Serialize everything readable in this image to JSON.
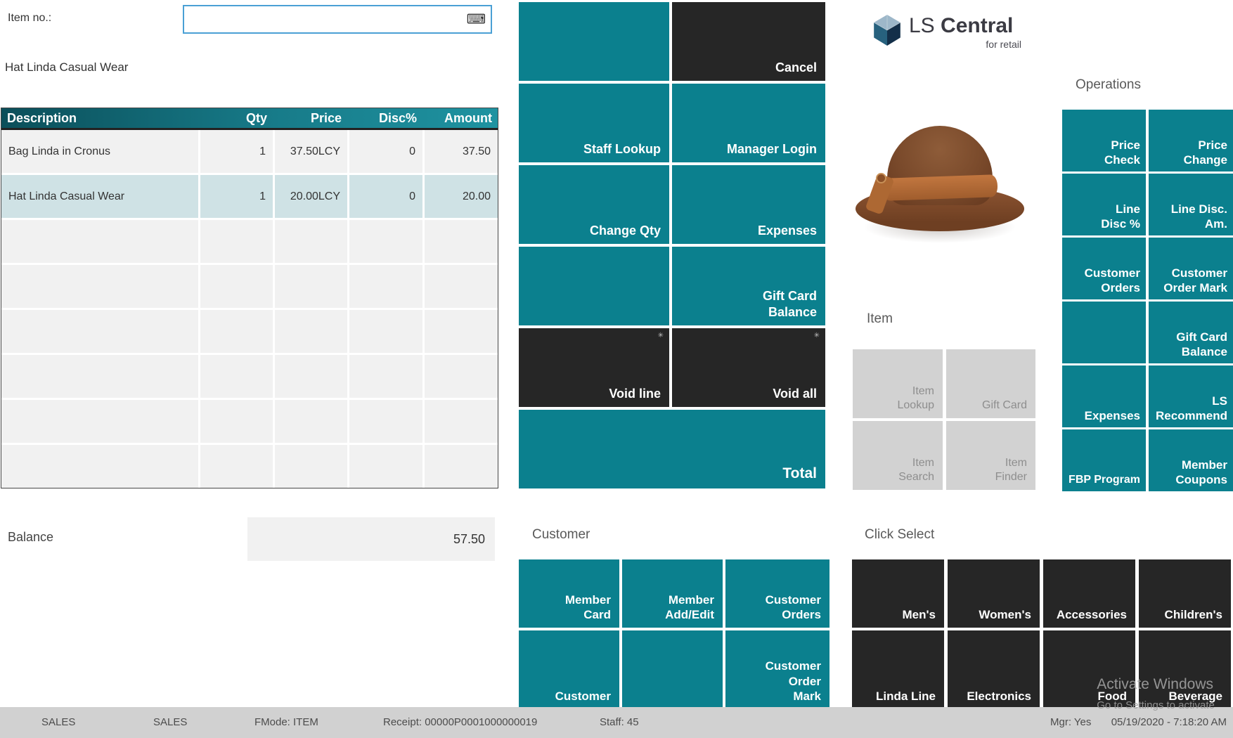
{
  "item_entry": {
    "label": "Item no.:",
    "value": "",
    "placeholder": "",
    "keyboard_icon": "⌨",
    "selected_item_name": "Hat Linda Casual Wear"
  },
  "receipt_table": {
    "columns": [
      "Description",
      "Qty",
      "Price",
      "Disc%",
      "Amount"
    ],
    "rows": [
      {
        "description": "Bag Linda in Cronus",
        "qty": "1",
        "price": "37.50LCY",
        "disc_pct": "0",
        "amount": "37.50",
        "selected": false
      },
      {
        "description": "Hat Linda Casual Wear",
        "qty": "1",
        "price": "20.00LCY",
        "disc_pct": "0",
        "amount": "20.00",
        "selected": true
      }
    ],
    "empty_rows": 6
  },
  "balance": {
    "label": "Balance",
    "value": "57.50"
  },
  "logo": {
    "prefix": "LS ",
    "name": "Central",
    "tagline": "for retail"
  },
  "sections": {
    "operations": "Operations",
    "item": "Item",
    "customer": "Customer",
    "click_select": "Click Select"
  },
  "grids": {
    "pos": {
      "cells": [
        {
          "label": "",
          "variant": "teal"
        },
        {
          "label": "Cancel",
          "variant": "dark"
        },
        {
          "label": "Staff Lookup",
          "variant": "teal"
        },
        {
          "label": "Manager Login",
          "variant": "teal"
        },
        {
          "label": "Change Qty",
          "variant": "teal"
        },
        {
          "label": "Expenses",
          "variant": "teal"
        },
        {
          "label": "",
          "variant": "teal"
        },
        {
          "label": "Gift Card Balance",
          "variant": "teal"
        },
        {
          "label": "Void line",
          "variant": "dark",
          "icon": "✳"
        },
        {
          "label": "Void all",
          "variant": "dark",
          "icon": "✳"
        },
        {
          "label": "Total",
          "variant": "teal",
          "span": 2,
          "large": true
        }
      ]
    },
    "operations": {
      "cells": [
        {
          "label": "Price Check",
          "variant": "teal"
        },
        {
          "label": "Price Change",
          "variant": "teal"
        },
        {
          "label": "Line Disc %",
          "variant": "teal"
        },
        {
          "label": "Line Disc. Am.",
          "variant": "teal"
        },
        {
          "label": "Customer Orders",
          "variant": "teal"
        },
        {
          "label": "Customer Order Mark",
          "variant": "teal"
        },
        {
          "label": "",
          "variant": "teal"
        },
        {
          "label": "Gift Card Balance",
          "variant": "teal"
        },
        {
          "label": "Expenses",
          "variant": "teal"
        },
        {
          "label": "LS Recommend",
          "variant": "teal"
        },
        {
          "label": "FBP Program",
          "variant": "teal"
        },
        {
          "label": "Member Coupons",
          "variant": "teal"
        }
      ]
    },
    "item": {
      "cells": [
        {
          "label": "Item Lookup",
          "variant": "gray"
        },
        {
          "label": "Gift Card",
          "variant": "gray"
        },
        {
          "label": "Item Search",
          "variant": "gray"
        },
        {
          "label": "Item Finder",
          "variant": "gray"
        }
      ]
    },
    "customer": {
      "cells": [
        {
          "label": "Member Card",
          "variant": "teal"
        },
        {
          "label": "Member Add/Edit",
          "variant": "teal"
        },
        {
          "label": "Customer Orders",
          "variant": "teal"
        },
        {
          "label": "Customer",
          "variant": "teal"
        },
        {
          "label": "",
          "variant": "teal"
        },
        {
          "label": "Customer Order Mark",
          "variant": "teal"
        }
      ]
    },
    "click_select": {
      "cells": [
        {
          "label": "Men's",
          "variant": "dark"
        },
        {
          "label": "Women's",
          "variant": "dark"
        },
        {
          "label": "Accessories",
          "variant": "dark"
        },
        {
          "label": "Children's",
          "variant": "dark"
        },
        {
          "label": "Linda Line",
          "variant": "dark"
        },
        {
          "label": "Electronics",
          "variant": "dark"
        },
        {
          "label": "Food",
          "variant": "dark"
        },
        {
          "label": "Beverage",
          "variant": "dark"
        }
      ]
    }
  },
  "status_bar": {
    "segments": [
      "SALES",
      "SALES",
      "FMode: ITEM",
      "Receipt: 00000P0001000000019",
      "Staff: 45",
      "Mgr: Yes",
      "05/19/2020 - 7:18:20 AM"
    ]
  },
  "watermark": {
    "line1": "Activate Windows",
    "line2": "Go to Settings to activate"
  },
  "colors": {
    "teal": "#0b808e",
    "dark": "#262626",
    "gray_button": "#d2d2d2",
    "selected_row": "#cfe2e5"
  }
}
